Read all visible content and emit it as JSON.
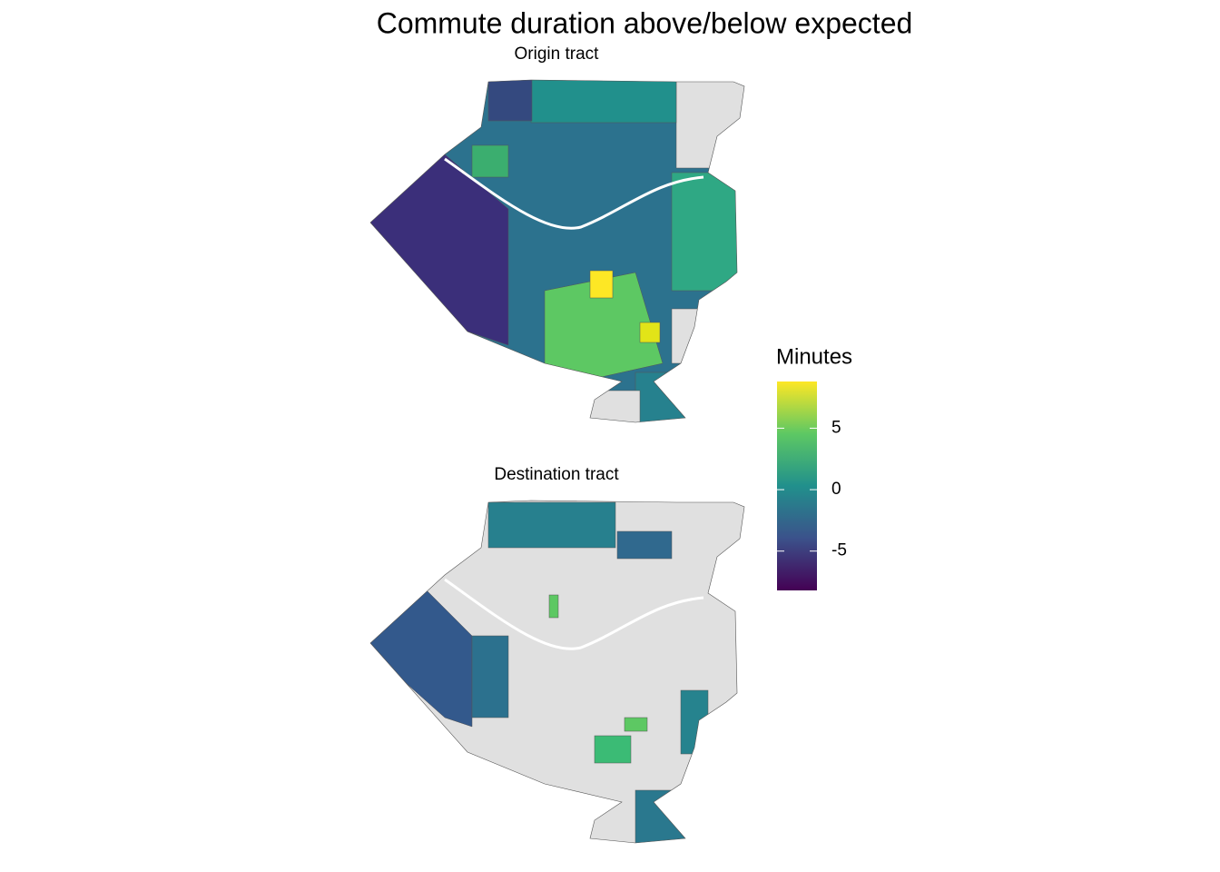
{
  "chart_data": {
    "type": "choropleth",
    "title": "Commute duration above/below expected",
    "panels": [
      "Origin tract",
      "Destination tract"
    ],
    "legend_title": "Minutes",
    "colorbar_lim": [
      -8.2,
      8.8
    ],
    "colorbar_ticks": [
      -5,
      0,
      5
    ],
    "palette": [
      "#440154",
      "#3b528b",
      "#21908c",
      "#5dc863",
      "#fde725"
    ],
    "missing_color": "#e0e0e0"
  }
}
